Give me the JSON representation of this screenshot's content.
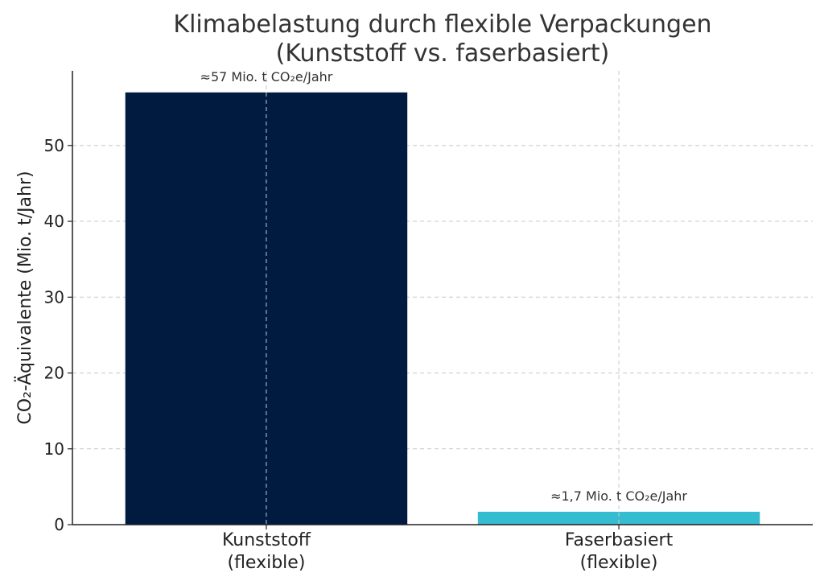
{
  "chart_data": {
    "type": "bar",
    "title_lines": [
      "Klimabelastung durch flexible Verpackungen",
      "(Kunststoff vs. faserbasiert)"
    ],
    "ylabel": "CO₂-Äquivalente (Mio. t/Jahr)",
    "xlabel": "",
    "categories": [
      {
        "lines": [
          "Kunststoff",
          "(flexible)"
        ]
      },
      {
        "lines": [
          "Faserbasiert",
          "(flexible)"
        ]
      }
    ],
    "values": [
      57,
      1.7
    ],
    "data_labels": [
      "≈57 Mio. t CO₂e/Jahr",
      "≈1,7 Mio. t CO₂e/Jahr"
    ],
    "colors": [
      "#001a40",
      "#36bcd0"
    ],
    "ylim": [
      0,
      59.85
    ],
    "yticks": [
      0,
      10,
      20,
      30,
      40,
      50
    ],
    "grid": true,
    "legend": "none"
  }
}
